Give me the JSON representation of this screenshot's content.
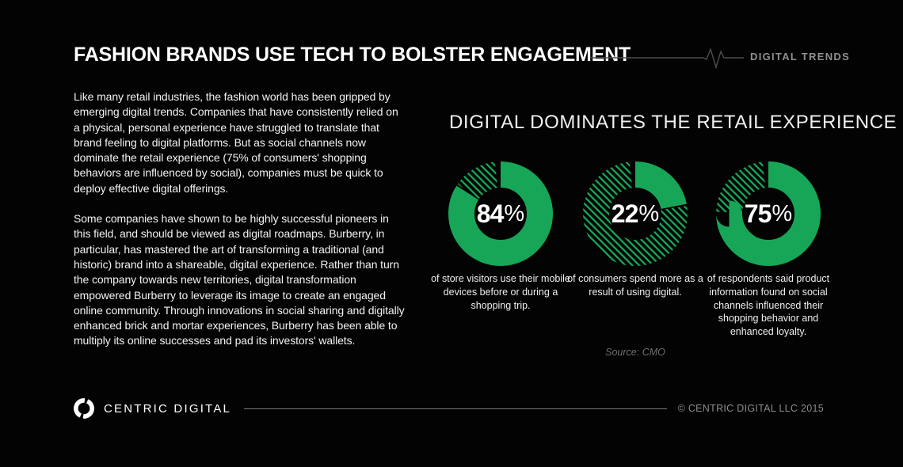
{
  "header": {
    "title": "FASHION BRANDS USE TECH TO BOLSTER ENGAGEMENT",
    "tag_label": "DIGITAL TRENDS"
  },
  "article": {
    "paragraph_1": "Like many retail industries, the fashion world has been gripped by emerging digital trends. Companies that have consistently relied on a physical, personal experience have struggled to translate that brand feeling to digital platforms. But as social channels now dominate the retail experience (75% of consumers' shopping behaviors are influenced by social), companies must be quick to deploy effective digital offerings.",
    "paragraph_2": "Some companies have shown to be highly successful pioneers in this field, and should be viewed as digital roadmaps. Burberry, in particular, has mastered the art of transforming a traditional (and historic) brand into a shareable, digital experience. Rather than turn the company towards new territories, digital transformation empowered Burberry to leverage its image to create an engaged online community. Through innovations in social sharing and digitally enhanced brick and mortar experiences, Burberry has been able to multiply its online successes and pad its investors' wallets."
  },
  "chart_data": {
    "type": "pie",
    "variant": "donut",
    "title": "DIGITAL DOMINATES THE RETAIL EXPERIENCE",
    "source": "Source: CMO",
    "legend_position": "none",
    "start_angle_deg": 0,
    "direction": "clockwise",
    "colors": {
      "solid_green": "#17a657",
      "hatch_green": "#17a657",
      "background": "#030303",
      "label_text": "#ffffff"
    },
    "items": [
      {
        "value": 84,
        "unit": "%",
        "caption": "of store visitors use their mobile devices before or during a shopping trip."
      },
      {
        "value": 22,
        "unit": "%",
        "caption": "of consumers spend more as a result of using digital."
      },
      {
        "value": 75,
        "unit": "%",
        "caption": "of respondents said product information found on social channels influenced their shopping behavior and enhanced loyalty."
      }
    ]
  },
  "footer": {
    "brand": "CENTRIC DIGITAL",
    "copyright": "© CENTRIC DIGITAL LLC 2015"
  }
}
